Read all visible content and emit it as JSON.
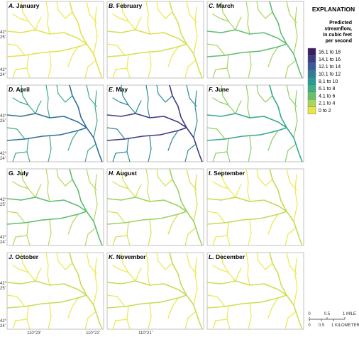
{
  "panels": [
    {
      "letter": "A.",
      "month": "January",
      "main_color": "#e3e24a",
      "tributary_color": "#ece84c"
    },
    {
      "letter": "B.",
      "month": "February",
      "main_color": "#d6df4e",
      "tributary_color": "#ece84c"
    },
    {
      "letter": "C.",
      "month": "March",
      "main_color": "#5fbd72",
      "tributary_color": "#a9d65a"
    },
    {
      "letter": "D.",
      "month": "April",
      "main_color": "#2f6f9a",
      "tributary_color": "#3faa88"
    },
    {
      "letter": "E.",
      "month": "May",
      "main_color": "#3b3a86",
      "tributary_color": "#2c8a98"
    },
    {
      "letter": "F.",
      "month": "June",
      "main_color": "#35a88c",
      "tributary_color": "#8ccf60"
    },
    {
      "letter": "G.",
      "month": "July",
      "main_color": "#5dbc70",
      "tributary_color": "#b5d957"
    },
    {
      "letter": "H.",
      "month": "August",
      "main_color": "#9ad35c",
      "tributary_color": "#d6df4e"
    },
    {
      "letter": "I.",
      "month": "September",
      "main_color": "#c3db55",
      "tributary_color": "#ece84c"
    },
    {
      "letter": "J.",
      "month": "October",
      "main_color": "#c8dc53",
      "tributary_color": "#ece84c"
    },
    {
      "letter": "K.",
      "month": "November",
      "main_color": "#c8dc53",
      "tributary_color": "#ece84c"
    },
    {
      "letter": "L.",
      "month": "December",
      "main_color": "#d0de50",
      "tributary_color": "#ece84c"
    }
  ],
  "latitude_labels": [
    [
      "42°",
      "25'"
    ],
    [
      "42°",
      "24'"
    ]
  ],
  "longitude_labels": [
    "110°23'",
    "110°22'",
    "110°21'"
  ],
  "legend": {
    "title": "EXPLANATION",
    "subtitle": [
      "Predicted",
      "streamflow,",
      "in cubic feet",
      "per second"
    ],
    "classes": [
      {
        "label": "16.1 to 18",
        "color": "#3b1e5f"
      },
      {
        "label": "14.1 to 16",
        "color": "#3d3a86"
      },
      {
        "label": "12.1 to 14",
        "color": "#3a5a9a"
      },
      {
        "label": "10.1 to 12",
        "color": "#2f7c9b"
      },
      {
        "label": "8.1 to 10",
        "color": "#2a9a95"
      },
      {
        "label": "6.1 to 8",
        "color": "#3cb08a"
      },
      {
        "label": "4.1 to 6",
        "color": "#69c26b"
      },
      {
        "label": "2.1 to 4",
        "color": "#a8d65a"
      },
      {
        "label": "0 to 2",
        "color": "#e8e44a"
      }
    ]
  },
  "scale": {
    "miles": [
      "0",
      "0.5",
      "1 MILE"
    ],
    "kilometers": [
      "0",
      "0.5",
      "1 KILOMETER"
    ]
  }
}
